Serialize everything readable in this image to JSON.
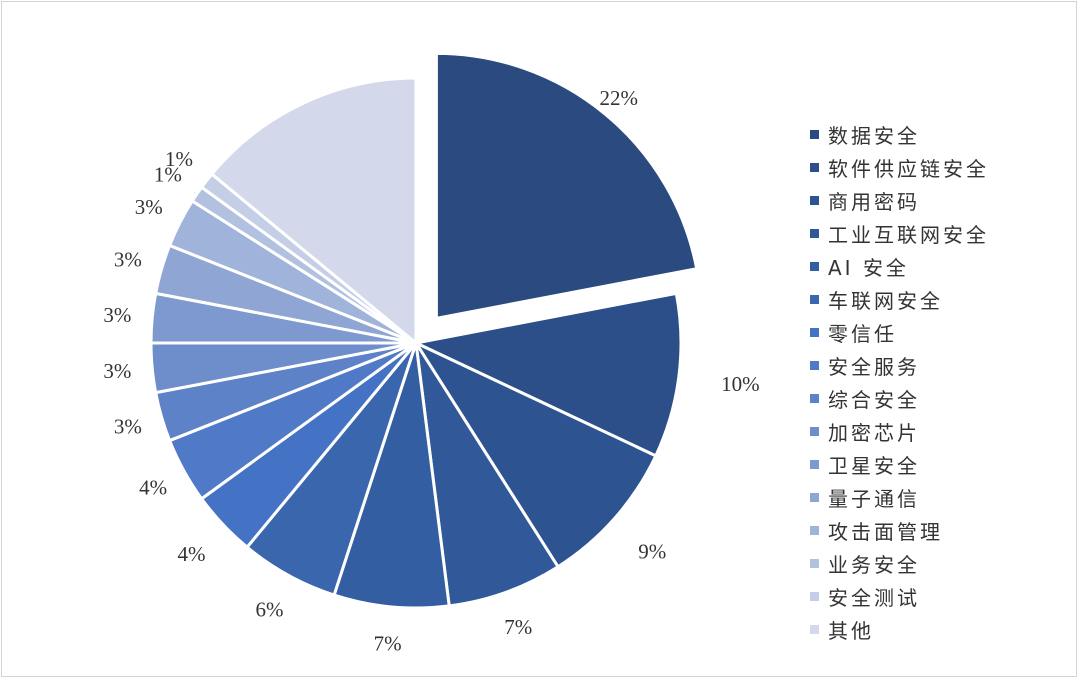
{
  "chart_data": {
    "type": "pie",
    "categories": [
      "数据安全",
      "软件供应链安全",
      "商用密码",
      "工业互联网安全",
      "AI 安全",
      "车联网安全",
      "零信任",
      "安全服务",
      "综合安全",
      "加密芯片",
      "卫星安全",
      "量子通信",
      "攻击面管理",
      "业务安全",
      "安全测试",
      "其他"
    ],
    "values": [
      22,
      10,
      9,
      7,
      7,
      6,
      4,
      4,
      3,
      3,
      3,
      3,
      3,
      1,
      1,
      14
    ],
    "data_labels": [
      "22%",
      "10%",
      "9%",
      "7%",
      "7%",
      "6%",
      "4%",
      "4%",
      "3%",
      "3%",
      "3%",
      "3%",
      "3%",
      "1%",
      "1%",
      ""
    ],
    "colors": [
      "#2a4a80",
      "#2c4f8a",
      "#2e5391",
      "#315898",
      "#345ea2",
      "#3a66ad",
      "#4472c4",
      "#5079c7",
      "#5e82c8",
      "#6e8dcb",
      "#7e99cf",
      "#8fa6d4",
      "#a0b3da",
      "#b2c1e0",
      "#c4cee6",
      "#d3d9eb"
    ],
    "exploded": [
      true,
      false,
      false,
      false,
      false,
      false,
      false,
      false,
      false,
      false,
      false,
      false,
      false,
      false,
      false,
      false
    ],
    "legend_position": "right"
  }
}
